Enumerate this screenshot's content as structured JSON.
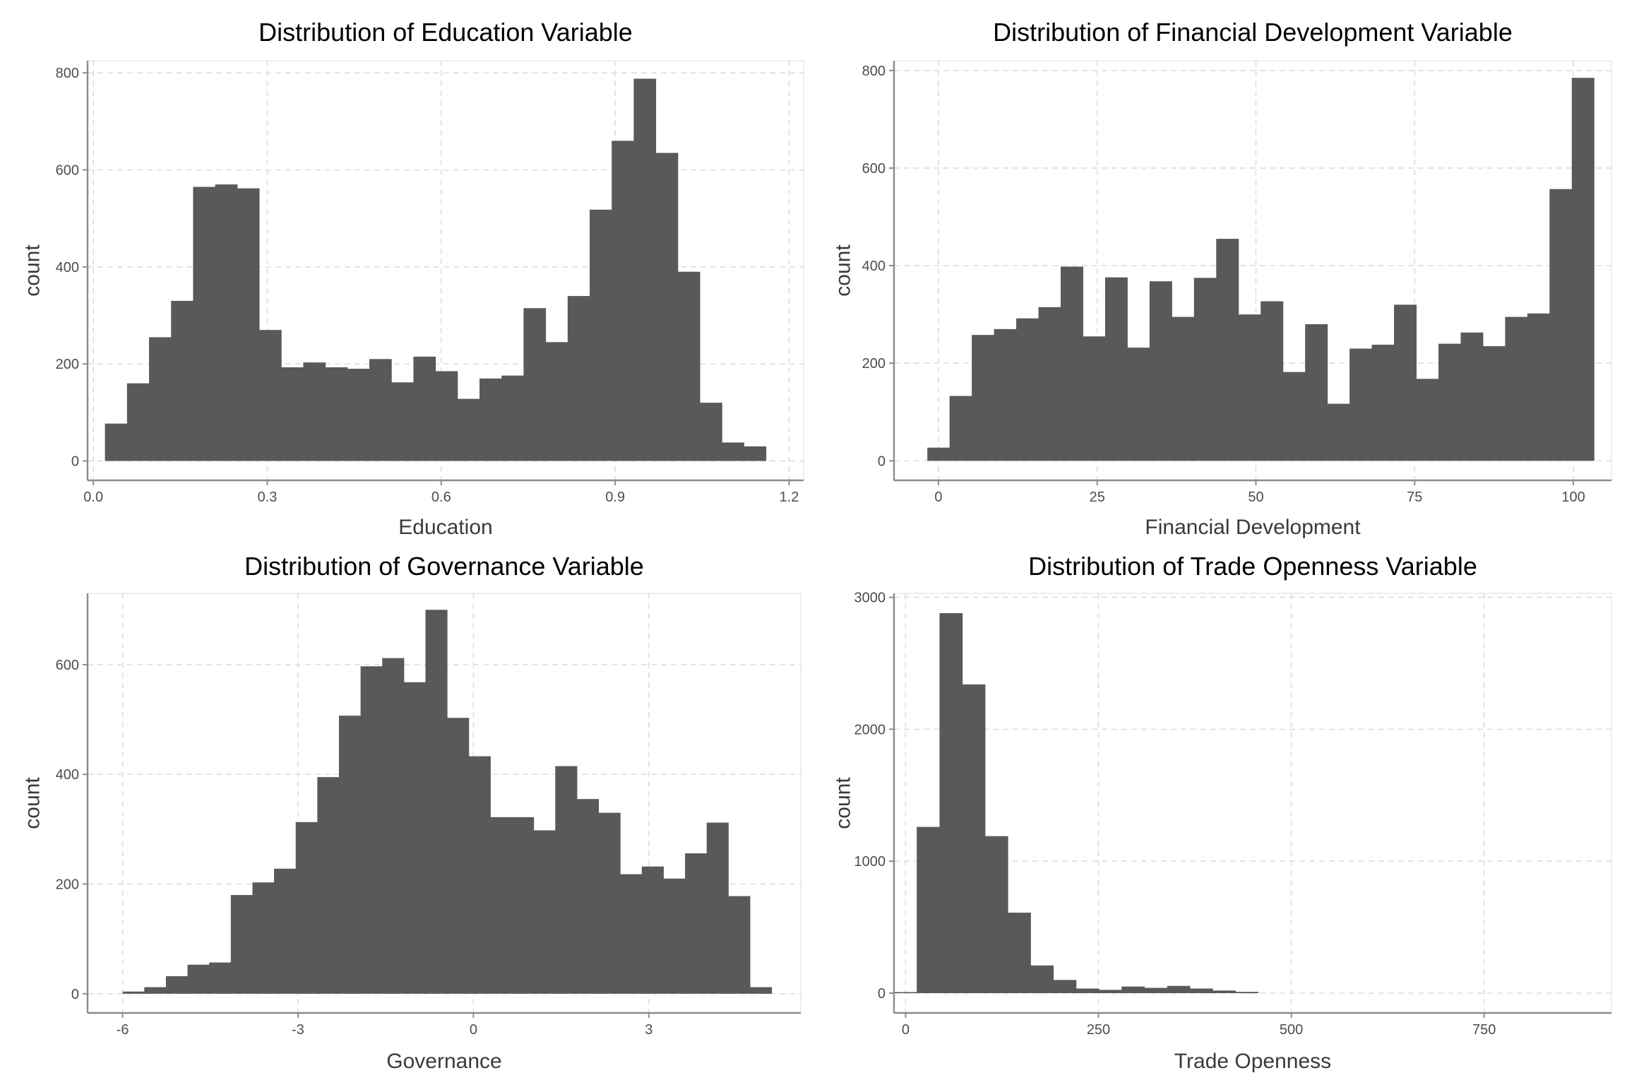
{
  "chart_data": [
    {
      "type": "bar",
      "title": "Distribution of Education Variable",
      "xlabel": "Education",
      "ylabel": "count",
      "xlim": [
        -0.01,
        1.225
      ],
      "ylim": [
        -40,
        825
      ],
      "x_ticks": [
        0.0,
        0.3,
        0.6,
        0.9,
        1.2
      ],
      "x_tick_labels": [
        "0.0",
        "0.3",
        "0.6",
        "0.9",
        "1.2"
      ],
      "y_ticks": [
        0,
        200,
        400,
        600,
        800
      ],
      "y_tick_labels": [
        "0",
        "200",
        "400",
        "600",
        "800"
      ],
      "grid": true,
      "bins": {
        "start": 0.02,
        "width": 0.038,
        "counts": [
          77,
          160,
          255,
          330,
          565,
          570,
          562,
          270,
          193,
          203,
          193,
          190,
          210,
          162,
          215,
          185,
          128,
          170,
          176,
          315,
          245,
          340,
          518,
          660,
          788,
          635,
          390,
          120,
          38,
          30
        ]
      }
    },
    {
      "type": "bar",
      "title": "Distribution of Financial Development Variable",
      "xlabel": "Financial Development",
      "ylabel": "count",
      "xlim": [
        -7,
        106
      ],
      "ylim": [
        -40,
        820
      ],
      "x_ticks": [
        0,
        25,
        50,
        75,
        100
      ],
      "x_tick_labels": [
        "0",
        "25",
        "50",
        "75",
        "100"
      ],
      "y_ticks": [
        0,
        200,
        400,
        600,
        800
      ],
      "y_tick_labels": [
        "0",
        "200",
        "400",
        "600",
        "800"
      ],
      "grid": true,
      "bins": {
        "start": -1.75,
        "width": 3.5,
        "counts": [
          27,
          133,
          258,
          270,
          292,
          315,
          398,
          255,
          376,
          232,
          368,
          295,
          375,
          455,
          300,
          327,
          182,
          280,
          117,
          230,
          238,
          320,
          168,
          240,
          263,
          235,
          295,
          302,
          557,
          785
        ]
      }
    },
    {
      "type": "bar",
      "title": "Distribution of Governance Variable",
      "xlabel": "Governance",
      "ylabel": "count",
      "xlim": [
        -6.6,
        5.6
      ],
      "ylim": [
        -35,
        730
      ],
      "x_ticks": [
        -6,
        -3,
        0,
        3
      ],
      "x_tick_labels": [
        "-6",
        "-3",
        "0",
        "3"
      ],
      "y_ticks": [
        0,
        200,
        400,
        600
      ],
      "y_tick_labels": [
        "0",
        "200",
        "400",
        "600"
      ],
      "grid": true,
      "bins": {
        "start": -6,
        "width": 0.37,
        "counts": [
          4,
          12,
          32,
          53,
          57,
          180,
          203,
          228,
          313,
          395,
          507,
          597,
          612,
          568,
          700,
          503,
          433,
          322,
          322,
          298,
          415,
          355,
          330,
          218,
          232,
          210,
          256,
          312,
          178,
          12
        ]
      }
    },
    {
      "type": "bar",
      "title": "Distribution of Trade Openness Variable",
      "xlabel": "Trade Openness",
      "ylabel": "count",
      "xlim": [
        -15,
        915
      ],
      "ylim": [
        -150,
        3030
      ],
      "x_ticks": [
        0,
        250,
        500,
        750
      ],
      "x_tick_labels": [
        "0",
        "250",
        "500",
        "750"
      ],
      "y_ticks": [
        0,
        1000,
        2000,
        3000
      ],
      "y_tick_labels": [
        "0",
        "1000",
        "2000",
        "3000"
      ],
      "grid": true,
      "bins": {
        "start": -15,
        "width": 29.5,
        "counts": [
          8,
          1260,
          2880,
          2340,
          1190,
          610,
          210,
          100,
          35,
          25,
          50,
          40,
          55,
          35,
          20,
          10
        ]
      }
    }
  ]
}
